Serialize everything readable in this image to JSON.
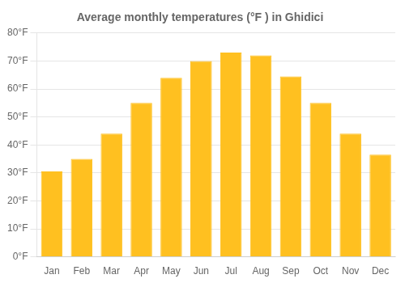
{
  "chart_data": {
    "type": "bar",
    "title": "Average monthly temperatures (°F ) in Ghidici",
    "categories": [
      "Jan",
      "Feb",
      "Mar",
      "Apr",
      "May",
      "Jun",
      "Jul",
      "Aug",
      "Sep",
      "Oct",
      "Nov",
      "Dec"
    ],
    "values": [
      30.5,
      35.0,
      44.0,
      55.0,
      64.0,
      70.0,
      73.0,
      72.0,
      64.5,
      55.0,
      44.0,
      36.5
    ],
    "color": "#FFC020",
    "ylim": [
      0,
      80
    ],
    "yticks": [
      {
        "value": 0,
        "label": "0°F"
      },
      {
        "value": 10,
        "label": "10°F"
      },
      {
        "value": 20,
        "label": "20°F"
      },
      {
        "value": 30,
        "label": "30°F"
      },
      {
        "value": 40,
        "label": "40°F"
      },
      {
        "value": 50,
        "label": "50°F"
      },
      {
        "value": 60,
        "label": "60°F"
      },
      {
        "value": 70,
        "label": "70°F"
      },
      {
        "value": 80,
        "label": "80°F"
      }
    ],
    "grid": true
  }
}
